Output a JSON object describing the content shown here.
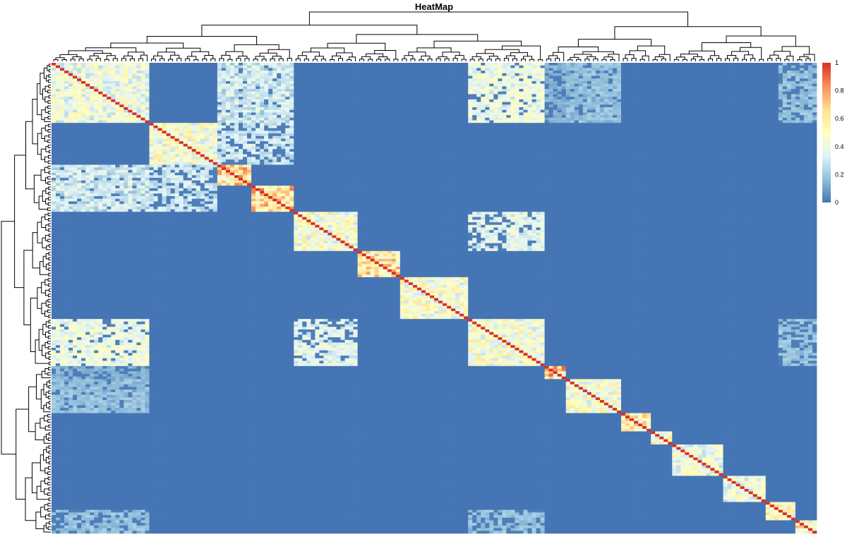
{
  "chart_data": {
    "type": "heatmap",
    "title": "HeatMap",
    "n": 180,
    "value_range": [
      0,
      1
    ],
    "colorbar": {
      "ticks": [
        "1",
        "0.8",
        "0.6",
        "0.4",
        "0.2",
        "0"
      ],
      "tick_values": [
        1,
        0.8,
        0.6,
        0.4,
        0.2,
        0
      ],
      "colors": [
        "#4575b4",
        "#91bfdb",
        "#e0f3f8",
        "#ffffbf",
        "#fee090",
        "#fc8d59",
        "#d73027"
      ]
    },
    "blocks": [
      {
        "start": 0,
        "end": 22,
        "level": 0.45
      },
      {
        "start": 23,
        "end": 38,
        "level": 0.5
      },
      {
        "start": 39,
        "end": 46,
        "level": 0.7
      },
      {
        "start": 47,
        "end": 56,
        "level": 0.7
      },
      {
        "start": 57,
        "end": 71,
        "level": 0.5
      },
      {
        "start": 72,
        "end": 81,
        "level": 0.65
      },
      {
        "start": 82,
        "end": 97,
        "level": 0.5
      },
      {
        "start": 98,
        "end": 115,
        "level": 0.5
      },
      {
        "start": 116,
        "end": 120,
        "level": 0.75
      },
      {
        "start": 121,
        "end": 133,
        "level": 0.5
      },
      {
        "start": 134,
        "end": 140,
        "level": 0.6
      },
      {
        "start": 141,
        "end": 145,
        "level": 0.55
      },
      {
        "start": 146,
        "end": 157,
        "level": 0.45
      },
      {
        "start": 158,
        "end": 167,
        "level": 0.45
      },
      {
        "start": 168,
        "end": 174,
        "level": 0.55
      },
      {
        "start": 175,
        "end": 179,
        "level": 0.6
      }
    ],
    "off_diagonal": [
      {
        "rows": [
          0,
          22
        ],
        "cols": [
          39,
          56
        ],
        "level": 0.28
      },
      {
        "rows": [
          0,
          22
        ],
        "cols": [
          98,
          115
        ],
        "level": 0.3
      },
      {
        "rows": [
          0,
          22
        ],
        "cols": [
          121,
          133
        ],
        "level": 0.15
      },
      {
        "rows": [
          23,
          38
        ],
        "cols": [
          39,
          56
        ],
        "level": 0.25
      },
      {
        "rows": [
          39,
          56
        ],
        "cols": [
          0,
          22
        ],
        "level": 0.2
      },
      {
        "rows": [
          57,
          71
        ],
        "cols": [
          107,
          115
        ],
        "level": 0.3
      },
      {
        "rows": [
          98,
          115
        ],
        "cols": [
          0,
          22
        ],
        "level": 0.35
      },
      {
        "rows": [
          98,
          115
        ],
        "cols": [
          57,
          71
        ],
        "level": 0.3
      },
      {
        "rows": [
          116,
          133
        ],
        "cols": [
          0,
          22
        ],
        "level": 0.12
      },
      {
        "rows": [
          171,
          179
        ],
        "cols": [
          0,
          22
        ],
        "level": 0.15
      },
      {
        "rows": [
          171,
          179
        ],
        "cols": [
          98,
          115
        ],
        "level": 0.15
      }
    ]
  }
}
